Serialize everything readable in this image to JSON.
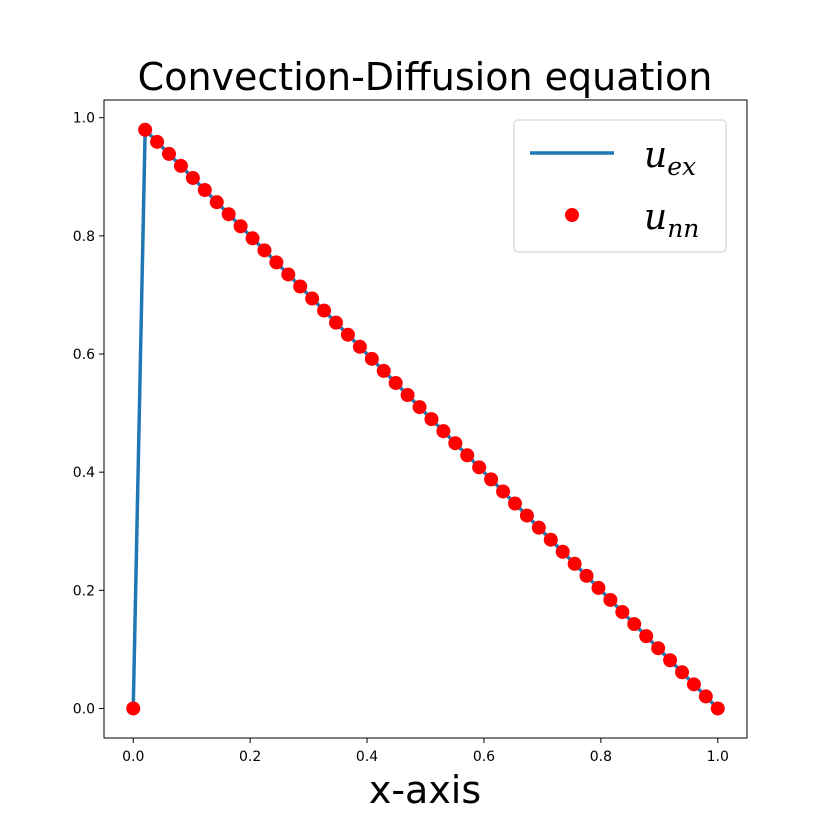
{
  "chart_data": {
    "type": "line",
    "title": "Convection-Diffusion equation",
    "xlabel": "x-axis",
    "ylabel": "",
    "xlim": [
      -0.05,
      1.05
    ],
    "ylim": [
      -0.05,
      1.03
    ],
    "xticks": [
      "0.0",
      "0.2",
      "0.4",
      "0.6",
      "0.8",
      "1.0"
    ],
    "yticks": [
      "0.0",
      "0.2",
      "0.4",
      "0.6",
      "0.8",
      "1.0"
    ],
    "grid": false,
    "legend_position": "top-right",
    "x": [
      0.0,
      0.0204,
      0.0408,
      0.0612,
      0.0816,
      0.102,
      0.1224,
      0.1429,
      0.1633,
      0.1837,
      0.2041,
      0.2245,
      0.2449,
      0.2653,
      0.2857,
      0.3061,
      0.3265,
      0.3469,
      0.3673,
      0.3878,
      0.4082,
      0.4286,
      0.449,
      0.4694,
      0.4898,
      0.5102,
      0.5306,
      0.551,
      0.5714,
      0.5918,
      0.6122,
      0.6327,
      0.6531,
      0.6735,
      0.6939,
      0.7143,
      0.7347,
      0.7551,
      0.7755,
      0.7959,
      0.8163,
      0.8367,
      0.8571,
      0.8776,
      0.898,
      0.9184,
      0.9388,
      0.9592,
      0.9796,
      1.0
    ],
    "series": [
      {
        "name": "u_ex",
        "label_main": "u",
        "label_sub": "ex",
        "style": "line",
        "color": "#1f77b4",
        "values": [
          0.0,
          0.9796,
          0.9592,
          0.9388,
          0.9184,
          0.898,
          0.8776,
          0.8571,
          0.8367,
          0.8163,
          0.7959,
          0.7755,
          0.7551,
          0.7347,
          0.7143,
          0.6939,
          0.6735,
          0.6531,
          0.6327,
          0.6122,
          0.5918,
          0.5714,
          0.551,
          0.5306,
          0.5102,
          0.4898,
          0.4694,
          0.449,
          0.4286,
          0.4082,
          0.3878,
          0.3673,
          0.3469,
          0.3265,
          0.3061,
          0.2857,
          0.2653,
          0.2449,
          0.2245,
          0.2041,
          0.1837,
          0.1633,
          0.1429,
          0.1224,
          0.102,
          0.0816,
          0.0612,
          0.0408,
          0.0204,
          0.0
        ]
      },
      {
        "name": "u_nn",
        "label_main": "u",
        "label_sub": "nn",
        "style": "markers",
        "color": "#ff0000",
        "values": [
          0.0,
          0.9796,
          0.9592,
          0.9388,
          0.9184,
          0.898,
          0.8776,
          0.8571,
          0.8367,
          0.8163,
          0.7959,
          0.7755,
          0.7551,
          0.7347,
          0.7143,
          0.6939,
          0.6735,
          0.6531,
          0.6327,
          0.6122,
          0.5918,
          0.5714,
          0.551,
          0.5306,
          0.5102,
          0.4898,
          0.4694,
          0.449,
          0.4286,
          0.4082,
          0.3878,
          0.3673,
          0.3469,
          0.3265,
          0.3061,
          0.2857,
          0.2653,
          0.2449,
          0.2245,
          0.2041,
          0.1837,
          0.1633,
          0.1429,
          0.1224,
          0.102,
          0.0816,
          0.0612,
          0.0408,
          0.0204,
          0.0
        ]
      }
    ]
  }
}
